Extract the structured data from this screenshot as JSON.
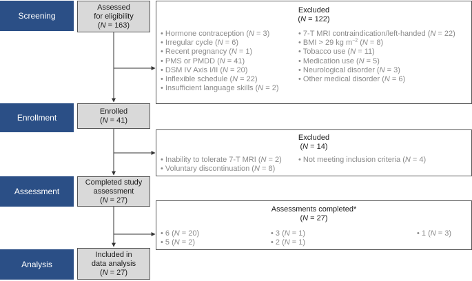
{
  "stages": [
    {
      "label": "Screening"
    },
    {
      "label": "Enrollment"
    },
    {
      "label": "Assessment"
    },
    {
      "label": "Analysis"
    }
  ],
  "main_boxes": [
    {
      "lines": [
        "Assessed",
        "for eligibility"
      ],
      "count_text": "(N = 163)"
    },
    {
      "lines": [
        "Enrolled"
      ],
      "count_text": "(N = 41)"
    },
    {
      "lines": [
        "Completed study",
        "assessment"
      ],
      "count_text": "(N = 27)"
    },
    {
      "lines": [
        "Included in",
        "data analysis"
      ],
      "count_text": "(N = 27)"
    }
  ],
  "exclusions_1": {
    "title": "Excluded",
    "count_text": "(N = 122)",
    "left": [
      "Hormone contraception (N = 3)",
      "Irregular cycle (N = 6)",
      "Recent pregnancy (N = 1)",
      "PMS or PMDD (N = 41)",
      "DSM IV Axis I/II (N = 20)",
      "Inflexible schedule (N = 22)",
      "Insufficient language skills (N = 2)"
    ],
    "right": [
      "7-T MRI contraindication/left-handed (N = 22)",
      "BMI > 29 kg m−2 (N = 8)",
      "Tobacco use (N = 11)",
      "Medication use (N = 5)",
      "Neurological disorder (N = 3)",
      "Other medical disorder (N = 6)"
    ]
  },
  "exclusions_2": {
    "title": "Excluded",
    "count_text": "(N = 14)",
    "left": [
      "Inability to tolerate 7-T MRI (N = 2)",
      "Voluntary discontinuation (N = 8)"
    ],
    "right": [
      "Not meeting inclusion criteria (N = 4)"
    ]
  },
  "assessments": {
    "title": "Assessments completed*",
    "count_text": "(N = 27)",
    "col1": [
      "6 (N = 20)",
      "5 (N = 2)"
    ],
    "col2": [
      "3 (N = 1)",
      "2 (N = 1)"
    ],
    "col3": [
      "1 (N = 3)"
    ]
  },
  "bullet": "•",
  "colors": {
    "stage_bg": "#2b4f86",
    "box_bg": "#d9d9d9",
    "item_text": "#8a8a8a"
  }
}
